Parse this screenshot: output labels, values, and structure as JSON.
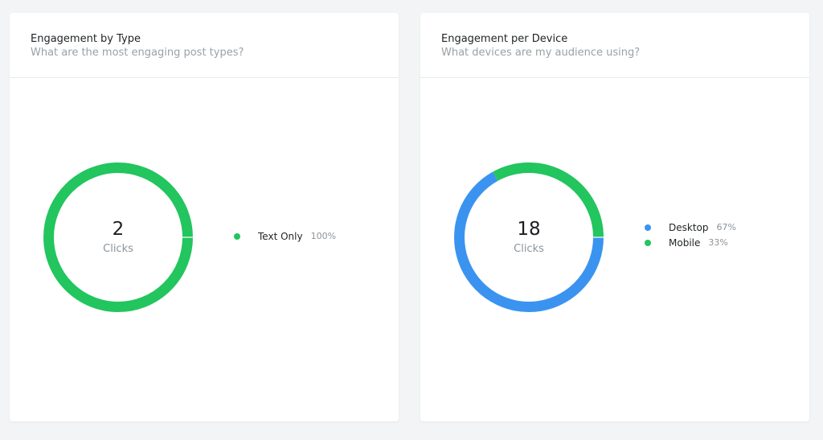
{
  "cards": [
    {
      "title": "Engagement by Type",
      "subtitle": "What are the most engaging post types?",
      "total": "2",
      "unit": "Clicks",
      "legend": [
        {
          "label": "Text Only",
          "pct": "100%",
          "color": "#22c55e"
        }
      ]
    },
    {
      "title": "Engagement per Device",
      "subtitle": "What devices are my audience using?",
      "total": "18",
      "unit": "Clicks",
      "legend": [
        {
          "label": "Desktop",
          "pct": "67%",
          "color": "#3b93f0"
        },
        {
          "label": "Mobile",
          "pct": "33%",
          "color": "#22c55e"
        }
      ]
    }
  ],
  "chart_data": [
    {
      "type": "pie",
      "title": "Engagement by Type",
      "categories": [
        "Text Only"
      ],
      "values": [
        100
      ],
      "colors": [
        "#22c55e"
      ]
    },
    {
      "type": "pie",
      "title": "Engagement per Device",
      "categories": [
        "Desktop",
        "Mobile"
      ],
      "values": [
        67,
        33
      ],
      "colors": [
        "#3b93f0",
        "#22c55e"
      ]
    }
  ]
}
